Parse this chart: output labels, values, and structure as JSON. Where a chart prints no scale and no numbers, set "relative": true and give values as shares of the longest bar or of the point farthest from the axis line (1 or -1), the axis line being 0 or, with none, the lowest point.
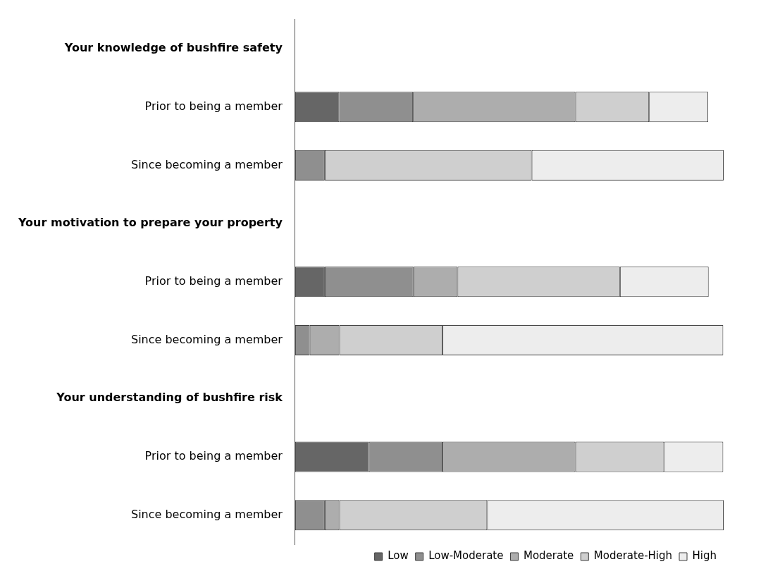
{
  "chart_data": {
    "type": "bar",
    "orientation": "horizontal",
    "stacked": true,
    "relative": true,
    "legend": "bottom",
    "categories": [
      "Your knowledge of bushfire safety",
      "Prior to being a member",
      "Since becoming a member",
      "Your motivation to prepare your property",
      "Prior to being a member",
      "Since becoming a member",
      "Your understanding of bushfire risk",
      "Prior to being a member",
      "Since becoming a member"
    ],
    "series": [
      {
        "name": "Low",
        "color": "#666666",
        "values": [
          null,
          0.103,
          0,
          null,
          0.069,
          0,
          null,
          0.172,
          0
        ]
      },
      {
        "name": "Low-Moderate",
        "color": "#8f8f8f",
        "values": [
          null,
          0.172,
          0.069,
          null,
          0.207,
          0.034,
          null,
          0.172,
          0.069
        ]
      },
      {
        "name": "Moderate",
        "color": "#adadad",
        "values": [
          null,
          0.379,
          0,
          null,
          0.103,
          0.069,
          null,
          0.31,
          0.034
        ]
      },
      {
        "name": "Moderate-High",
        "color": "#cfcfcf",
        "values": [
          null,
          0.172,
          0.483,
          null,
          0.379,
          0.241,
          null,
          0.207,
          0.345
        ]
      },
      {
        "name": "High",
        "color": "#ededed",
        "values": [
          null,
          0.138,
          0.448,
          null,
          0.207,
          0.655,
          null,
          0.138,
          0.552
        ]
      }
    ]
  }
}
